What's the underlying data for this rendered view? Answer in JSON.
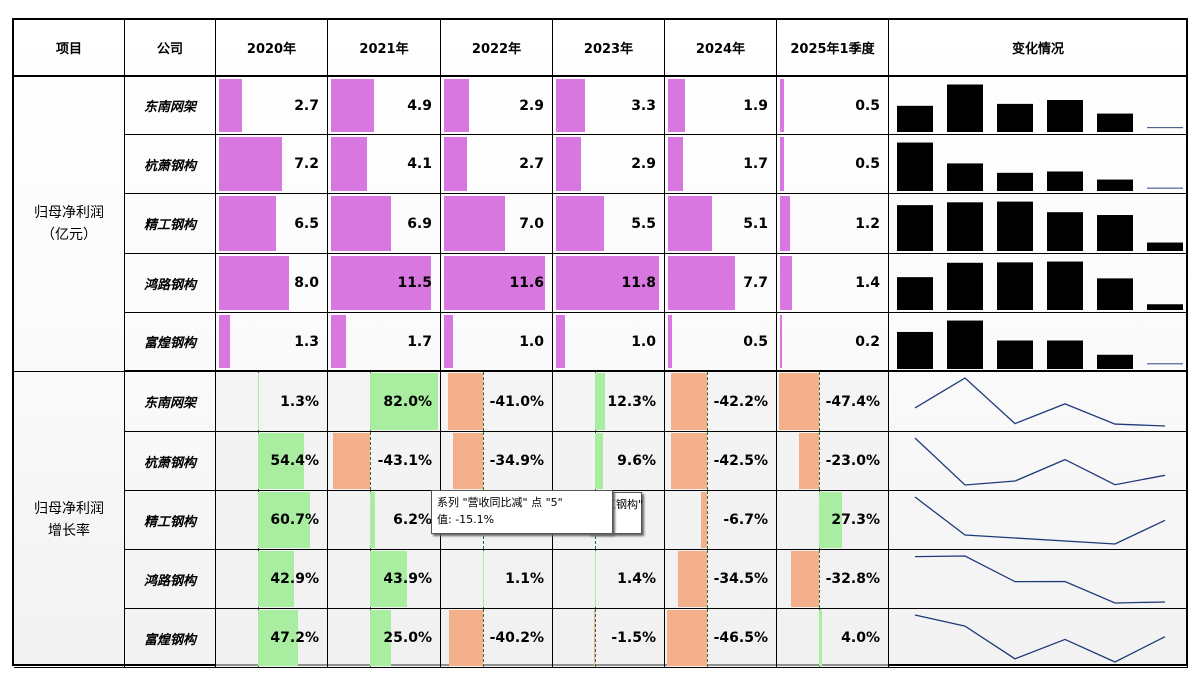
{
  "headers": [
    "项目",
    "公司",
    "2020年",
    "2021年",
    "2022年",
    "2023年",
    "2024年",
    "2025年1季度",
    "变化情况"
  ],
  "section1": {
    "label_line1": "归母净利润",
    "label_line2": "（亿元）",
    "color": "#d977e0",
    "rows": [
      {
        "company": "东南网架",
        "values": [
          2.7,
          4.9,
          2.9,
          3.3,
          1.9,
          0.5
        ]
      },
      {
        "company": "杭萧钢构",
        "values": [
          7.2,
          4.1,
          2.7,
          2.9,
          1.7,
          0.5
        ]
      },
      {
        "company": "精工钢构",
        "values": [
          6.5,
          6.9,
          7.0,
          5.5,
          5.1,
          1.2
        ]
      },
      {
        "company": "鸿路钢构",
        "values": [
          8.0,
          11.5,
          11.6,
          11.8,
          7.7,
          1.4
        ]
      },
      {
        "company": "富煌钢构",
        "values": [
          1.3,
          1.7,
          1.0,
          1.0,
          0.5,
          0.2
        ]
      }
    ]
  },
  "section2": {
    "label_line1": "归母净利润",
    "label_line2": "增长率",
    "positive_color": "#a8eda0",
    "negative_color": "#f3b08a",
    "rows": [
      {
        "company": "东南网架",
        "values": [
          1.3,
          82.0,
          -41.0,
          12.3,
          -42.2,
          -47.4
        ]
      },
      {
        "company": "杭萧钢构",
        "values": [
          54.4,
          -43.1,
          -34.9,
          9.6,
          -42.5,
          -23.0
        ]
      },
      {
        "company": "精工钢构",
        "values": [
          60.7,
          6.2,
          null,
          null,
          -6.7,
          27.3
        ]
      },
      {
        "company": "鸿路钢构",
        "values": [
          42.9,
          43.9,
          1.1,
          1.4,
          -34.5,
          -32.8
        ]
      },
      {
        "company": "富煌钢构",
        "values": [
          47.2,
          25.0,
          -40.2,
          -1.5,
          -46.5,
          4.0
        ]
      }
    ]
  },
  "tooltip": {
    "line1": "系列 \"营收同比减\" 点 \"5\"",
    "line2": "值: -15.1%",
    "fragment": "精工钢构\""
  }
}
